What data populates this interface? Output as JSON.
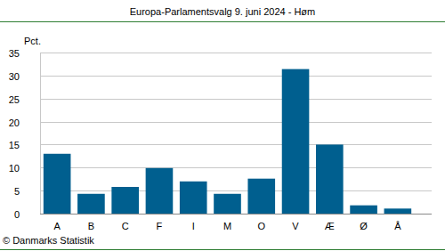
{
  "chart_data": {
    "type": "bar",
    "title": "Europa-Parlamentsvalg 9. juni 2024 - Høm",
    "y_label": "Pct.",
    "source": "© Danmarks Statistik",
    "categories": [
      "A",
      "B",
      "C",
      "F",
      "I",
      "M",
      "O",
      "V",
      "Æ",
      "Ø",
      "Å"
    ],
    "values": [
      13.0,
      4.3,
      5.8,
      9.9,
      7.0,
      4.3,
      7.6,
      31.4,
      15.0,
      1.8,
      1.1
    ],
    "color": "#005f8f",
    "ylim": [
      0,
      35
    ],
    "yticks": [
      0,
      5,
      10,
      15,
      20,
      25,
      30,
      35
    ],
    "grid": true
  }
}
